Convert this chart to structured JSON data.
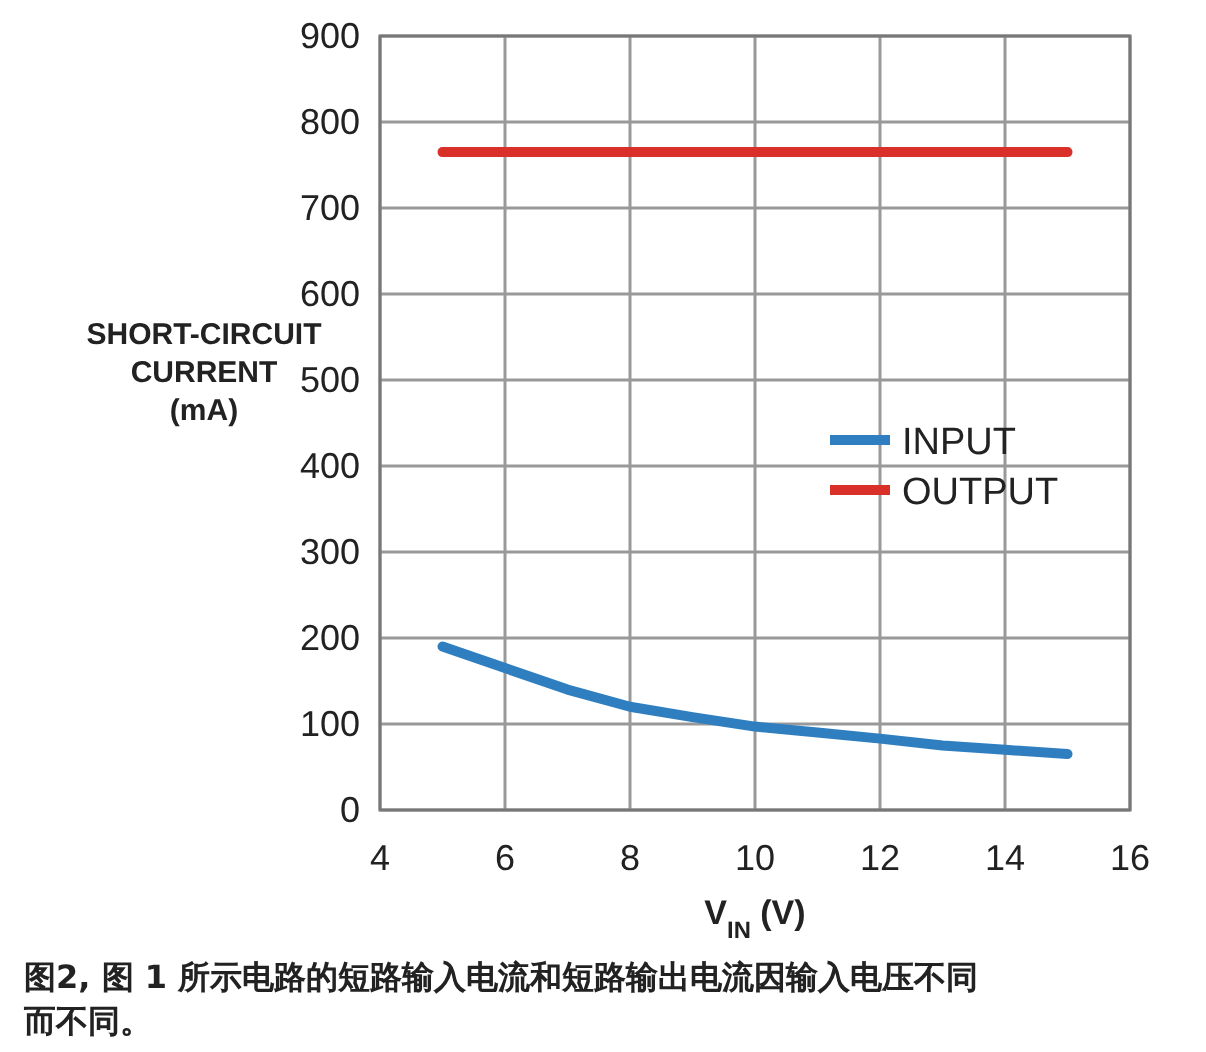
{
  "chart_data": {
    "type": "line",
    "ylabel": "SHORT-CIRCUIT CURRENT (mA)",
    "xlabel": "V$_{IN}$ (V)",
    "xlim": [
      4,
      16
    ],
    "xticks": [
      4,
      6,
      8,
      10,
      12,
      14,
      16
    ],
    "ylim": [
      0,
      900
    ],
    "yticks": [
      0,
      100,
      200,
      300,
      400,
      500,
      600,
      700,
      800,
      900
    ],
    "grid": true,
    "legend": "right",
    "series": [
      {
        "name": "INPUT",
        "color": "#2f7fc0",
        "x": [
          5,
          6,
          7,
          8,
          9,
          10,
          11,
          12,
          13,
          14,
          15
        ],
        "values": [
          190,
          165,
          140,
          120,
          108,
          97,
          90,
          83,
          75,
          70,
          65
        ]
      },
      {
        "name": "OUTPUT",
        "color": "#d9302a",
        "x": [
          5,
          15
        ],
        "values": [
          765,
          765
        ]
      }
    ],
    "annotations": [
      "图2, 图 1 所示电路的短路输入电流和短路输出电流因输入电压不同而不同。"
    ]
  }
}
